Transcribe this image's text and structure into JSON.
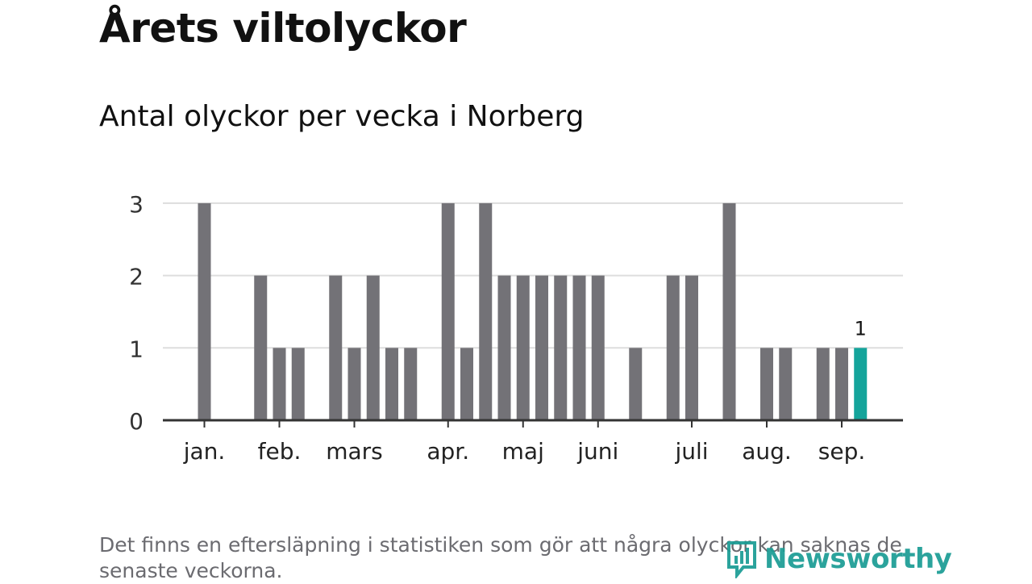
{
  "header": {
    "title": "Årets viltolyckor",
    "subtitle": "Antal olyckor per vecka i Norberg"
  },
  "footer": {
    "note": "Det finns en eftersläpning i statistiken som gör att några olyckor kan saknas de senaste veckorna.",
    "logo_text": "Newsworthy"
  },
  "colors": {
    "bar": "#737277",
    "highlight": "#14a49b",
    "grid": "#dddddd",
    "axis": "#333333",
    "logo": "#1a9c94"
  },
  "chart_data": {
    "type": "bar",
    "title": "Antal olyckor per vecka i Norberg",
    "xlabel": "",
    "ylabel": "",
    "weeks": [
      1,
      2,
      3,
      4,
      5,
      6,
      7,
      8,
      9,
      10,
      11,
      12,
      13,
      14,
      15,
      16,
      17,
      18,
      19,
      20,
      21,
      22,
      23,
      24,
      25,
      26,
      27,
      28,
      29,
      30,
      31,
      32,
      33,
      34,
      35,
      36,
      37,
      38
    ],
    "values": [
      3,
      0,
      0,
      2,
      1,
      1,
      0,
      2,
      1,
      2,
      1,
      1,
      0,
      3,
      1,
      3,
      2,
      2,
      2,
      2,
      2,
      2,
      0,
      1,
      0,
      2,
      2,
      0,
      3,
      0,
      1,
      1,
      0,
      1,
      1,
      1,
      null,
      null
    ],
    "highlight_index": 35,
    "highlight_label": "1",
    "ylim": [
      0,
      3
    ],
    "yticks": [
      "0",
      "1",
      "2",
      "3"
    ],
    "month_labels": [
      {
        "label": "jan.",
        "week": 1
      },
      {
        "label": "feb.",
        "week": 5
      },
      {
        "label": "mars",
        "week": 9
      },
      {
        "label": "apr.",
        "week": 14
      },
      {
        "label": "maj",
        "week": 18
      },
      {
        "label": "juni",
        "week": 22
      },
      {
        "label": "juli",
        "week": 27
      },
      {
        "label": "aug.",
        "week": 31
      },
      {
        "label": "sep.",
        "week": 35
      }
    ],
    "grid": true,
    "legend": "none"
  }
}
